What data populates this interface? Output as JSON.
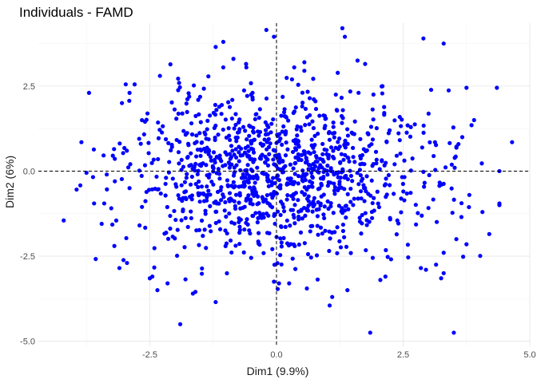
{
  "chart_data": {
    "type": "scatter",
    "title": "Individuals - FAMD",
    "xlabel": "Dim1 (9.9%)",
    "ylabel": "Dim2 (6%)",
    "xlim": [
      -4.7,
      5.0
    ],
    "ylim": [
      -5.15,
      4.35
    ],
    "x_ticks": [
      -2.5,
      0.0,
      2.5,
      5.0
    ],
    "x_tick_labels": [
      "-2.5",
      "0.0",
      "2.5",
      "5.0"
    ],
    "y_ticks": [
      -5.0,
      -2.5,
      0.0,
      2.5
    ],
    "y_tick_labels": [
      "-5.0",
      "-2.5",
      "0.0",
      "2.5"
    ],
    "x_minor_ticks": [
      -3.75,
      -1.25,
      1.25,
      3.75
    ],
    "y_minor_ticks": [
      -3.75,
      -1.25,
      1.25,
      3.75
    ],
    "reference_lines": {
      "x": 0,
      "y": 0,
      "style": "dashed"
    },
    "grid": true,
    "point_color": "#0000ff",
    "grid_color": "#ebebeb",
    "n_points": 1200,
    "seed": 7,
    "series": [
      {
        "values_note_free": true,
        "points": [
          [
            -4.2,
            -1.45
          ],
          [
            -3.85,
            0.85
          ],
          [
            -3.7,
            2.3
          ],
          [
            -3.75,
            -0.05
          ],
          [
            -3.6,
            -0.95
          ],
          [
            -3.4,
            -0.95
          ],
          [
            -3.35,
            -0.1
          ],
          [
            -3.45,
            -1.55
          ],
          [
            -3.2,
            -2.2
          ],
          [
            -3.1,
            -2.85
          ],
          [
            -2.95,
            -2.7
          ],
          [
            -3.05,
            2.0
          ],
          [
            -2.8,
            2.55
          ],
          [
            -2.9,
            2.3
          ],
          [
            -2.3,
            2.8
          ],
          [
            -2.5,
            -3.15
          ],
          [
            -2.45,
            -3.1
          ],
          [
            -2.35,
            -3.5
          ],
          [
            -2.15,
            -3.3
          ],
          [
            -1.65,
            -3.6
          ],
          [
            -1.6,
            -3.55
          ],
          [
            -1.2,
            -3.85
          ],
          [
            -1.9,
            -4.5
          ],
          [
            -2.9,
            -0.5
          ],
          [
            -1.05,
            3.8
          ],
          [
            -1.2,
            3.65
          ],
          [
            -1.05,
            3.05
          ],
          [
            -0.85,
            3.3
          ],
          [
            -0.6,
            3.15
          ],
          [
            -0.5,
            2.25
          ],
          [
            -0.2,
            4.15
          ],
          [
            -0.05,
            3.95
          ],
          [
            0.35,
            3.05
          ],
          [
            0.55,
            3.2
          ],
          [
            0.55,
            2.95
          ],
          [
            1.3,
            4.2
          ],
          [
            1.35,
            3.95
          ],
          [
            1.6,
            3.25
          ],
          [
            1.75,
            3.15
          ],
          [
            2.9,
            3.9
          ],
          [
            3.3,
            3.75
          ],
          [
            3.75,
            2.45
          ],
          [
            4.35,
            2.45
          ],
          [
            3.85,
            1.35
          ],
          [
            4.65,
            0.85
          ],
          [
            3.9,
            1.5
          ],
          [
            4.4,
            0.0
          ],
          [
            4.4,
            -0.95
          ],
          [
            4.4,
            -1.0
          ],
          [
            4.2,
            -1.85
          ],
          [
            3.65,
            -1.35
          ],
          [
            3.75,
            -2.15
          ],
          [
            3.3,
            -2.4
          ],
          [
            3.55,
            -2.0
          ],
          [
            3.15,
            -2.75
          ],
          [
            3.3,
            -3.0
          ],
          [
            3.25,
            -3.15
          ],
          [
            3.5,
            -4.75
          ],
          [
            1.85,
            -4.75
          ],
          [
            1.05,
            -3.95
          ],
          [
            1.1,
            -3.7
          ],
          [
            0.6,
            -3.45
          ],
          [
            1.4,
            -3.5
          ],
          [
            2.05,
            -3.2
          ],
          [
            2.15,
            -3.1
          ],
          [
            2.85,
            -2.85
          ],
          [
            2.95,
            -2.9
          ],
          [
            0.25,
            -3.3
          ],
          [
            -0.05,
            -3.25
          ],
          [
            0.05,
            -3.3
          ],
          [
            -0.5,
            -2.55
          ],
          [
            0.1,
            -2.1
          ],
          [
            1.9,
            -2.55
          ]
        ]
      }
    ]
  }
}
